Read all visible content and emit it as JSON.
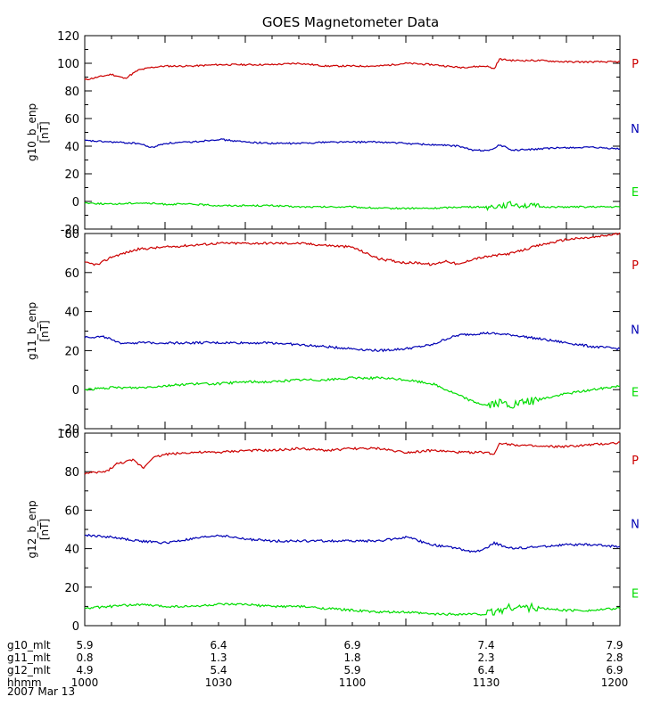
{
  "colors": {
    "P": "#cc0000",
    "N": "#0000b4",
    "E": "#00dd00",
    "axis": "#000000"
  },
  "chart_data": {
    "type": "line",
    "title": "GOES Magnetometer Data",
    "date": "2007 Mar 13",
    "xlim": [
      1000,
      1200
    ],
    "panels": [
      {
        "ylabel": "g10_b_enp",
        "unit": "[nT]",
        "ylim": [
          -20,
          120
        ],
        "yticks": [
          -20,
          0,
          20,
          40,
          60,
          80,
          100,
          120
        ],
        "series": [
          {
            "name": "P",
            "x": [
              1000,
              1005,
              1010,
              1015,
              1020,
              1025,
              1030,
              1040,
              1050,
              1060,
              1070,
              1080,
              1090,
              1100,
              1110,
              1120,
              1130,
              1140,
              1150,
              1153,
              1155,
              1160,
              1170,
              1180,
              1190,
              1200
            ],
            "values": [
              88,
              90,
              92,
              89,
              95,
              97,
              98,
              98,
              99,
              99,
              99,
              100,
              98,
              98,
              98,
              100,
              99,
              97,
              98,
              96,
              103,
              102,
              102,
              101,
              101,
              101
            ]
          },
          {
            "name": "N",
            "x": [
              1000,
              1010,
              1020,
              1025,
              1030,
              1040,
              1050,
              1060,
              1070,
              1080,
              1090,
              1100,
              1110,
              1120,
              1130,
              1140,
              1145,
              1150,
              1153,
              1155,
              1160,
              1170,
              1180,
              1190,
              1200
            ],
            "values": [
              44,
              43,
              42,
              39,
              42,
              43,
              45,
              43,
              42,
              42,
              43,
              43,
              43,
              42,
              41,
              40,
              37,
              37,
              38,
              41,
              37,
              38,
              39,
              39,
              38
            ]
          },
          {
            "name": "E",
            "x": [
              1000,
              1010,
              1020,
              1030,
              1040,
              1050,
              1060,
              1070,
              1080,
              1090,
              1100,
              1110,
              1120,
              1130,
              1140,
              1150,
              1155,
              1160,
              1170,
              1180,
              1190,
              1200
            ],
            "values": [
              -1,
              -2,
              -1,
              -2,
              -2,
              -3,
              -3,
              -3,
              -4,
              -4,
              -4,
              -5,
              -5,
              -5,
              -4,
              -4,
              -3,
              -2,
              -4,
              -4,
              -4,
              -4
            ]
          }
        ],
        "labels": [
          {
            "name": "P",
            "value": 100
          },
          {
            "name": "N",
            "value": 53
          },
          {
            "name": "E",
            "value": 7
          }
        ]
      },
      {
        "ylabel": "g11_b_enp",
        "unit": "[nT]",
        "ylim": [
          -20,
          80
        ],
        "yticks": [
          -20,
          0,
          20,
          40,
          60,
          80
        ],
        "series": [
          {
            "name": "P",
            "x": [
              1000,
              1005,
              1010,
              1015,
              1020,
              1030,
              1040,
              1050,
              1060,
              1070,
              1080,
              1090,
              1100,
              1105,
              1110,
              1115,
              1120,
              1125,
              1130,
              1135,
              1140,
              1145,
              1150,
              1160,
              1170,
              1180,
              1190,
              1200
            ],
            "values": [
              65,
              64,
              68,
              70,
              72,
              73,
              74,
              75,
              75,
              75,
              75,
              74,
              73,
              70,
              67,
              66,
              65,
              65,
              64,
              66,
              64,
              67,
              68,
              70,
              74,
              77,
              78,
              80
            ]
          },
          {
            "name": "N",
            "x": [
              1000,
              1008,
              1012,
              1020,
              1030,
              1040,
              1050,
              1060,
              1070,
              1080,
              1090,
              1100,
              1110,
              1120,
              1125,
              1130,
              1135,
              1140,
              1150,
              1160,
              1170,
              1180,
              1190,
              1200
            ],
            "values": [
              27,
              27,
              24,
              24,
              24,
              24,
              24,
              24,
              24,
              23,
              22,
              21,
              20,
              21,
              22,
              23,
              26,
              28,
              29,
              28,
              26,
              24,
              22,
              21
            ]
          },
          {
            "name": "E",
            "x": [
              1000,
              1010,
              1020,
              1030,
              1040,
              1050,
              1060,
              1070,
              1080,
              1090,
              1100,
              1110,
              1120,
              1130,
              1135,
              1140,
              1145,
              1150,
              1155,
              1160,
              1170,
              1180,
              1190,
              1200
            ],
            "values": [
              0,
              1,
              1,
              2,
              3,
              3,
              4,
              4,
              5,
              5,
              6,
              6,
              5,
              3,
              0,
              -3,
              -6,
              -8,
              -7,
              -8,
              -5,
              -2,
              0,
              2
            ]
          }
        ],
        "labels": [
          {
            "name": "P",
            "value": 64
          },
          {
            "name": "N",
            "value": 31
          },
          {
            "name": "E",
            "value": -1
          }
        ]
      },
      {
        "ylabel": "g12_b_enp",
        "unit": "[nT]",
        "ylim": [
          0,
          100
        ],
        "yticks": [
          0,
          20,
          40,
          60,
          80,
          100
        ],
        "series": [
          {
            "name": "P",
            "x": [
              1000,
              1008,
              1012,
              1018,
              1022,
              1025,
              1030,
              1040,
              1050,
              1060,
              1070,
              1080,
              1090,
              1100,
              1110,
              1120,
              1130,
              1140,
              1150,
              1153,
              1155,
              1160,
              1170,
              1180,
              1190,
              1200
            ],
            "values": [
              79,
              80,
              84,
              86,
              82,
              87,
              89,
              90,
              90,
              91,
              91,
              92,
              91,
              92,
              92,
              90,
              91,
              90,
              90,
              89,
              95,
              94,
              93,
              93,
              94,
              95
            ]
          },
          {
            "name": "N",
            "x": [
              1000,
              1010,
              1020,
              1030,
              1040,
              1050,
              1060,
              1070,
              1080,
              1090,
              1100,
              1110,
              1120,
              1130,
              1140,
              1145,
              1150,
              1153,
              1155,
              1160,
              1170,
              1180,
              1190,
              1200
            ],
            "values": [
              47,
              46,
              44,
              43,
              45,
              47,
              45,
              44,
              44,
              44,
              44,
              44,
              46,
              42,
              40,
              38,
              40,
              43,
              42,
              40,
              41,
              42,
              42,
              41
            ]
          },
          {
            "name": "E",
            "x": [
              1000,
              1010,
              1020,
              1030,
              1040,
              1050,
              1060,
              1070,
              1080,
              1090,
              1100,
              1110,
              1120,
              1130,
              1140,
              1150,
              1155,
              1160,
              1170,
              1180,
              1190,
              1200
            ],
            "values": [
              9,
              10,
              11,
              10,
              10,
              11,
              11,
              10,
              10,
              9,
              8,
              7,
              7,
              6,
              6,
              6,
              8,
              10,
              9,
              8,
              8,
              9
            ]
          }
        ],
        "labels": [
          {
            "name": "P",
            "value": 86
          },
          {
            "name": "N",
            "value": 53
          },
          {
            "name": "E",
            "value": 17
          }
        ]
      }
    ],
    "x_axis_table": {
      "rows": [
        {
          "label": "g10_mlt",
          "values": [
            "5.9",
            "6.4",
            "6.9",
            "7.4",
            "7.9"
          ]
        },
        {
          "label": "g11_mlt",
          "values": [
            "0.8",
            "1.3",
            "1.8",
            "2.3",
            "2.8"
          ]
        },
        {
          "label": "g12_mlt",
          "values": [
            "4.9",
            "5.4",
            "5.9",
            "6.4",
            "6.9"
          ]
        },
        {
          "label": "hhmm",
          "values": [
            "1000",
            "1030",
            "1100",
            "1130",
            "1200"
          ]
        }
      ]
    }
  }
}
